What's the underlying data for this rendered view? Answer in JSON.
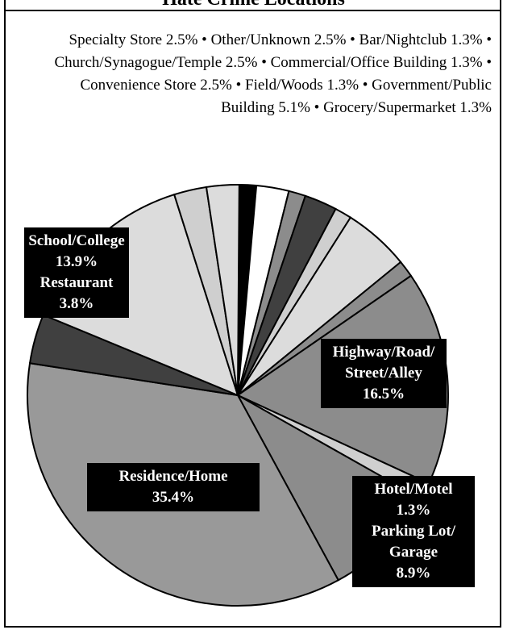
{
  "chart_data": {
    "type": "pie",
    "title": "Hate Crime Locations",
    "categories": [
      "Bar/Nightclub",
      "Church/Synagogue/Temple",
      "Commercial/Office Building",
      "Convenience Store",
      "Field/Woods",
      "Government/Public Building",
      "Grocery/Supermarket",
      "Highway/Road/Street/Alley",
      "Hotel/Motel",
      "Parking Lot/Garage",
      "Residence/Home",
      "Restaurant",
      "School/College",
      "Specialty Store",
      "Other/Unknown"
    ],
    "values": [
      1.3,
      2.5,
      1.3,
      2.5,
      1.3,
      5.1,
      1.3,
      16.5,
      1.3,
      8.9,
      35.4,
      3.8,
      13.9,
      2.5,
      2.5
    ],
    "value_labels": [
      "1.3%",
      "2.5%",
      "1.3%",
      "2.5%",
      "1.3%",
      "5.1%",
      "1.3%",
      "16.5%",
      "1.3%",
      "8.9%",
      "35.4%",
      "3.8%",
      "13.9%",
      "2.5%",
      "2.5%"
    ],
    "colors": [
      "#000000",
      "#ffffff",
      "#8c8c8c",
      "#404040",
      "#cfcfcf",
      "#dcdcdc",
      "#8c8c8c",
      "#8c8c8c",
      "#cfcfcf",
      "#8c8c8c",
      "#999999",
      "#404040",
      "#dcdcdc",
      "#cfcfcf",
      "#dcdcdc"
    ],
    "separator": "•"
  }
}
